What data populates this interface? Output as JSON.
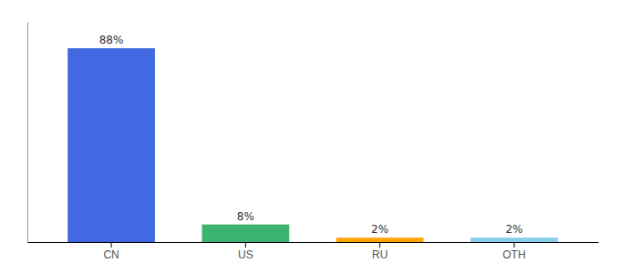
{
  "chart_data": {
    "type": "bar",
    "categories": [
      "CN",
      "US",
      "RU",
      "OTH"
    ],
    "values": [
      88,
      8,
      2,
      2
    ],
    "value_labels": [
      "88%",
      "8%",
      "2%",
      "2%"
    ],
    "colors": [
      "#4169E1",
      "#3CB371",
      "#FFA500",
      "#87CEEB"
    ],
    "ylim": [
      0,
      100
    ],
    "tick_labels": "x"
  }
}
